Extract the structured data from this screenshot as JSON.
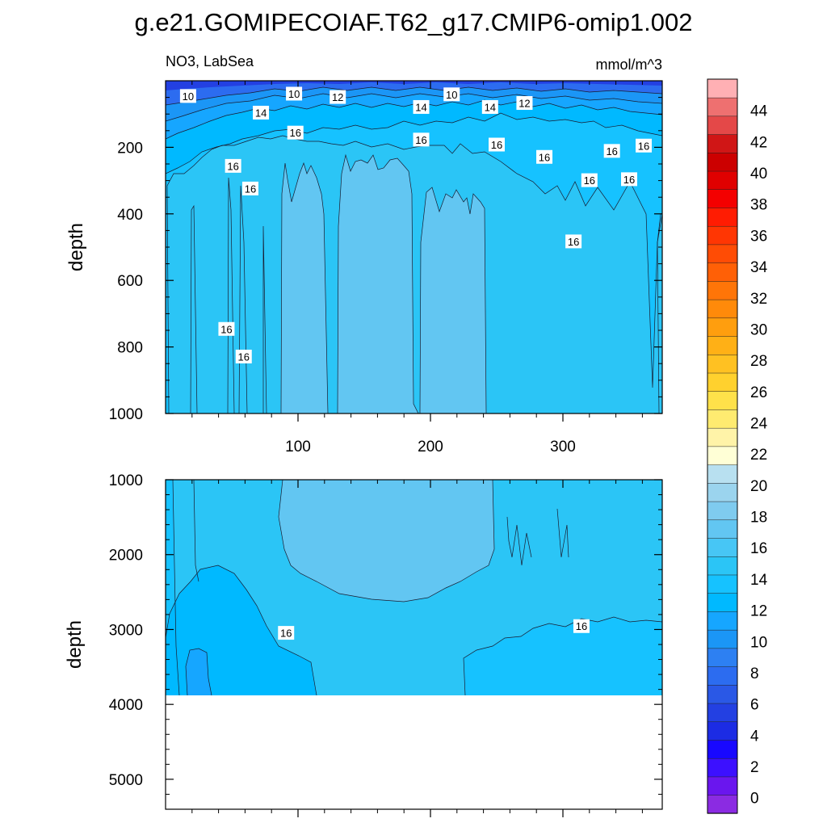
{
  "title": "g.e21.GOMIPECOIAF.T62_g17.CMIP6-omip1.002",
  "variable_label": "NO3, LabSea",
  "units_label": "mmol/m^3",
  "colors": {
    "levels": [
      "#8b2be2",
      "#6a16ee",
      "#3c10ff",
      "#1808ff",
      "#1c2ce4",
      "#2340e2",
      "#2a58e6",
      "#2c6cf0",
      "#2d80f2",
      "#1b96f6",
      "#16a6ff",
      "#00b9ff",
      "#16c2ff",
      "#2bc5f6",
      "#47c6f5",
      "#62c6f2",
      "#7fcbef",
      "#9bd4ee",
      "#b8e0f0",
      "#ffffd6",
      "#fff3a8",
      "#ffeb70",
      "#ffe14a",
      "#ffd12e",
      "#ffc122",
      "#ffb016",
      "#ff9e0e",
      "#ff8a0a",
      "#ff7508",
      "#ff6006",
      "#ff4c05",
      "#ff3603",
      "#ff1c02",
      "#f40000",
      "#e00000",
      "#cc0000",
      "#d01616",
      "#e44848",
      "#ee7070",
      "#ffb0b4"
    ]
  },
  "chart_data": [
    {
      "type": "contour",
      "panel": "upper",
      "x_range": [
        0,
        375
      ],
      "y_range": [
        0,
        1000
      ],
      "y_inverted": true,
      "x_ticks": [
        100,
        200,
        300
      ],
      "y_ticks": [
        200,
        400,
        600,
        800,
        1000
      ],
      "ylabel": "depth",
      "contour_labels": [
        {
          "text": "10",
          "x": 17,
          "y": 47
        },
        {
          "text": "10",
          "x": 97,
          "y": 40
        },
        {
          "text": "12",
          "x": 130,
          "y": 50
        },
        {
          "text": "14",
          "x": 72,
          "y": 97
        },
        {
          "text": "16",
          "x": 98,
          "y": 157
        },
        {
          "text": "14",
          "x": 193,
          "y": 80
        },
        {
          "text": "10",
          "x": 216,
          "y": 42
        },
        {
          "text": "14",
          "x": 245,
          "y": 80
        },
        {
          "text": "12",
          "x": 271,
          "y": 68
        },
        {
          "text": "16",
          "x": 193,
          "y": 178
        },
        {
          "text": "16",
          "x": 250,
          "y": 193
        },
        {
          "text": "16",
          "x": 286,
          "y": 230
        },
        {
          "text": "16",
          "x": 337,
          "y": 212
        },
        {
          "text": "16",
          "x": 361,
          "y": 196
        },
        {
          "text": "16",
          "x": 51,
          "y": 257
        },
        {
          "text": "16",
          "x": 64,
          "y": 325
        },
        {
          "text": "16",
          "x": 320,
          "y": 300
        },
        {
          "text": "16",
          "x": 350,
          "y": 297
        },
        {
          "text": "16",
          "x": 308,
          "y": 484
        },
        {
          "text": "16",
          "x": 46,
          "y": 747
        },
        {
          "text": "16",
          "x": 59,
          "y": 830
        }
      ]
    },
    {
      "type": "contour",
      "panel": "lower",
      "x_range": [
        0,
        375
      ],
      "y_range": [
        1000,
        5400
      ],
      "y_inverted": true,
      "y_ticks": [
        1000,
        2000,
        3000,
        4000,
        5000
      ],
      "ylabel": "depth",
      "data_bottom_depth": 3870,
      "contour_labels": [
        {
          "text": "16",
          "x": 91,
          "y": 3050
        },
        {
          "text": "16",
          "x": 314,
          "y": 2960
        }
      ]
    }
  ],
  "colorbar": {
    "labels": [
      "44",
      "42",
      "40",
      "38",
      "36",
      "34",
      "32",
      "30",
      "28",
      "26",
      "24",
      "22",
      "20",
      "18",
      "16",
      "14",
      "12",
      "10",
      "8",
      "6",
      "4",
      "2",
      "0"
    ],
    "label_values": [
      44,
      42,
      40,
      38,
      36,
      34,
      32,
      30,
      28,
      26,
      24,
      22,
      20,
      18,
      16,
      14,
      12,
      10,
      8,
      6,
      4,
      2,
      0
    ],
    "min": -1,
    "max": 46,
    "step": 1
  }
}
